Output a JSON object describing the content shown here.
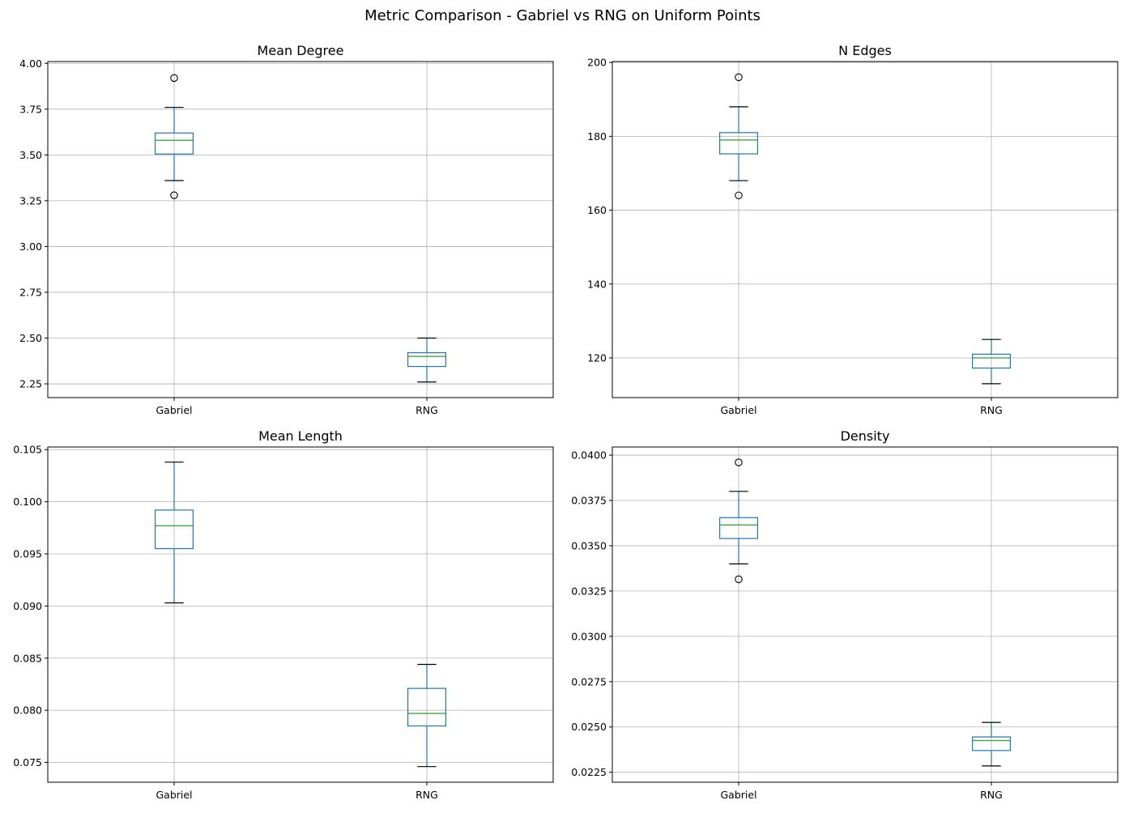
{
  "suptitle": "Metric Comparison - Gabriel vs RNG on Uniform Points",
  "colors": {
    "box": "#1f77b4",
    "median": "#2ca02c",
    "grid": "#b0b0b0",
    "whisker_cap": "#000000",
    "flier": "#000000"
  },
  "chart_data": [
    {
      "type": "box",
      "title": "Mean Degree",
      "categories": [
        "Gabriel",
        "RNG"
      ],
      "grid": true,
      "ylim": [
        2.175,
        4.01
      ],
      "yticks": [
        2.25,
        2.5,
        2.75,
        3.0,
        3.25,
        3.5,
        3.75,
        4.0
      ],
      "ytick_labels": [
        "2.25",
        "2.50",
        "2.75",
        "3.00",
        "3.25",
        "3.50",
        "3.75",
        "4.00"
      ],
      "boxes": [
        {
          "name": "Gabriel",
          "whislo": 3.36,
          "q1": 3.505,
          "med": 3.58,
          "q3": 3.62,
          "whishi": 3.76,
          "fliers": [
            3.92,
            3.28
          ]
        },
        {
          "name": "RNG",
          "whislo": 2.26,
          "q1": 2.345,
          "med": 2.4,
          "q3": 2.42,
          "whishi": 2.5,
          "fliers": []
        }
      ]
    },
    {
      "type": "box",
      "title": "N Edges",
      "categories": [
        "Gabriel",
        "RNG"
      ],
      "grid": true,
      "ylim": [
        109.25,
        200.25
      ],
      "yticks": [
        120,
        140,
        160,
        180,
        200
      ],
      "ytick_labels": [
        "120",
        "140",
        "160",
        "180",
        "200"
      ],
      "boxes": [
        {
          "name": "Gabriel",
          "whislo": 168,
          "q1": 175.25,
          "med": 179,
          "q3": 181,
          "whishi": 188,
          "fliers": [
            196,
            164
          ]
        },
        {
          "name": "RNG",
          "whislo": 113,
          "q1": 117.25,
          "med": 120,
          "q3": 121,
          "whishi": 125,
          "fliers": []
        }
      ]
    },
    {
      "type": "box",
      "title": "Mean Length",
      "categories": [
        "Gabriel",
        "RNG"
      ],
      "grid": true,
      "ylim": [
        0.0731,
        0.10525
      ],
      "yticks": [
        0.075,
        0.08,
        0.085,
        0.09,
        0.095,
        0.1,
        0.105
      ],
      "ytick_labels": [
        "0.075",
        "0.080",
        "0.085",
        "0.090",
        "0.095",
        "0.100",
        "0.105"
      ],
      "boxes": [
        {
          "name": "Gabriel",
          "whislo": 0.0903,
          "q1": 0.0955,
          "med": 0.0977,
          "q3": 0.0992,
          "whishi": 0.1038,
          "fliers": []
        },
        {
          "name": "RNG",
          "whislo": 0.0746,
          "q1": 0.0785,
          "med": 0.0797,
          "q3": 0.0821,
          "whishi": 0.0844,
          "fliers": []
        }
      ]
    },
    {
      "type": "box",
      "title": "Density",
      "categories": [
        "Gabriel",
        "RNG"
      ],
      "grid": true,
      "ylim": [
        0.02195,
        0.04045
      ],
      "yticks": [
        0.0225,
        0.025,
        0.0275,
        0.03,
        0.0325,
        0.035,
        0.0375,
        0.04
      ],
      "ytick_labels": [
        "0.0225",
        "0.0250",
        "0.0275",
        "0.0300",
        "0.0325",
        "0.0350",
        "0.0375",
        "0.0400"
      ],
      "boxes": [
        {
          "name": "Gabriel",
          "whislo": 0.034,
          "q1": 0.0354,
          "med": 0.03615,
          "q3": 0.03655,
          "whishi": 0.038,
          "fliers": [
            0.0396,
            0.03315
          ]
        },
        {
          "name": "RNG",
          "whislo": 0.02285,
          "q1": 0.0237,
          "med": 0.02425,
          "q3": 0.02445,
          "whishi": 0.02525,
          "fliers": []
        }
      ]
    }
  ]
}
